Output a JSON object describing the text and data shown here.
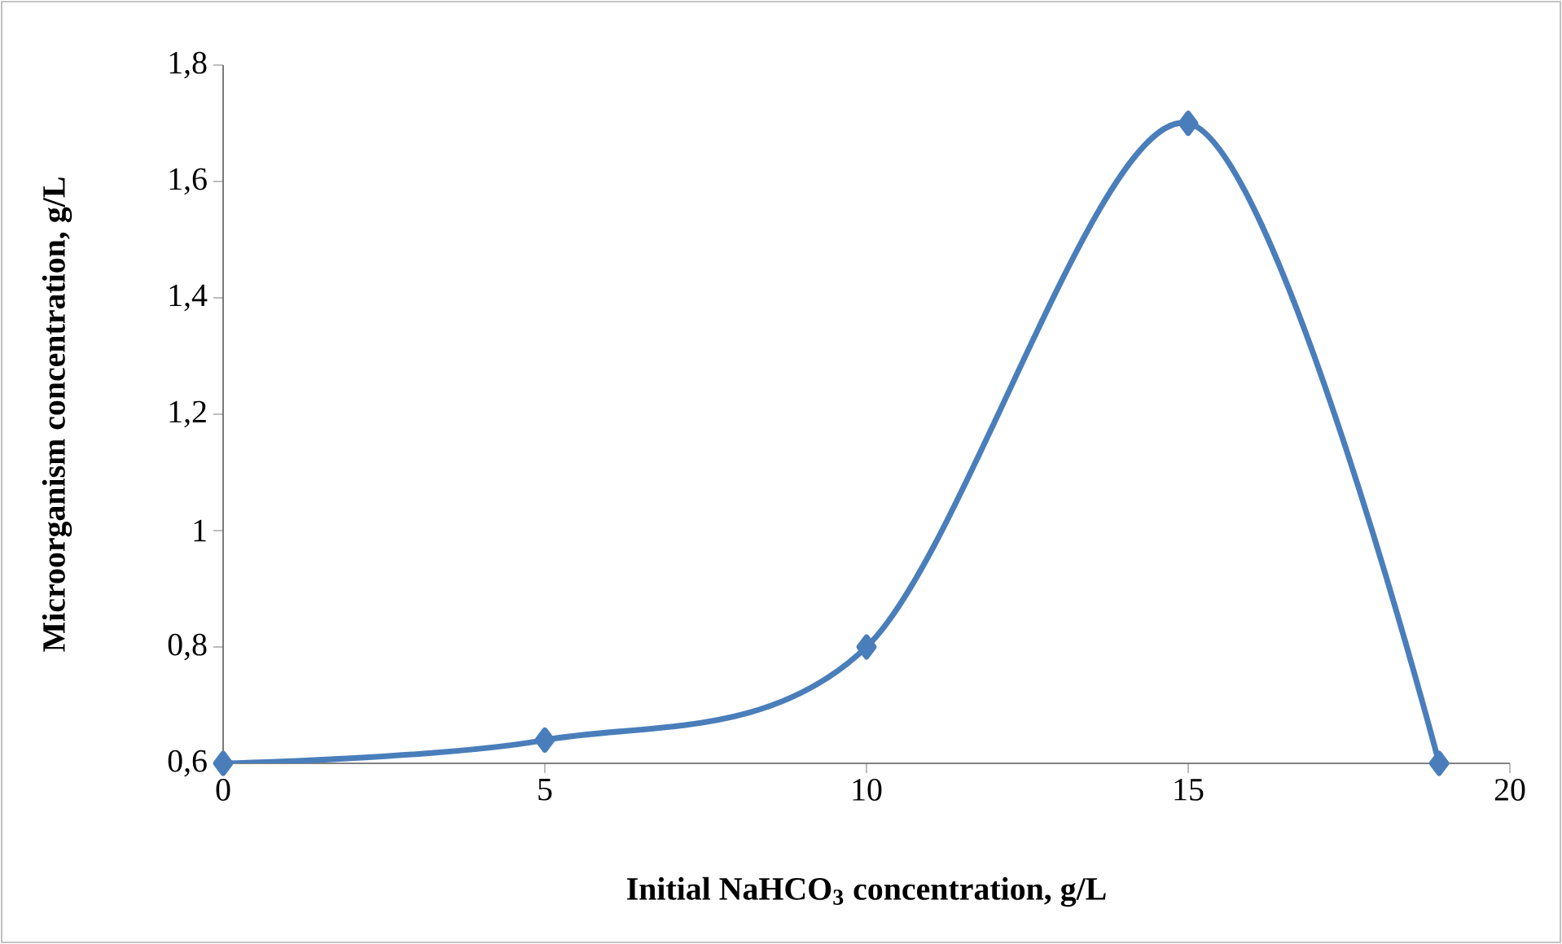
{
  "chart_data": {
    "type": "line",
    "xlabel": "Initial NaHCO$_{3}$ concentration, g/L",
    "ylabel": "Microorganism concentration, g/L",
    "series": [
      {
        "color": "#4a7ebb",
        "x": [
          0,
          5,
          10,
          15,
          18.9
        ],
        "values": [
          0.6,
          0.64,
          0.8,
          1.7,
          0.6
        ]
      }
    ],
    "xlim": [
      0,
      20
    ],
    "xticks": [
      0,
      5,
      10,
      15,
      20
    ],
    "ylim": [
      0.6,
      1.8
    ],
    "yticks": [
      {
        "value": 0.6,
        "label": "0,6"
      },
      {
        "value": 0.8,
        "label": "0,8"
      },
      1,
      {
        "value": 1.2,
        "label": "1,2"
      },
      {
        "value": 1.4,
        "label": "1,4"
      },
      {
        "value": 1.6,
        "label": "1,6"
      },
      {
        "value": 1.8,
        "label": "1,8"
      }
    ],
    "marker": "diamond",
    "line_style": "solid"
  }
}
